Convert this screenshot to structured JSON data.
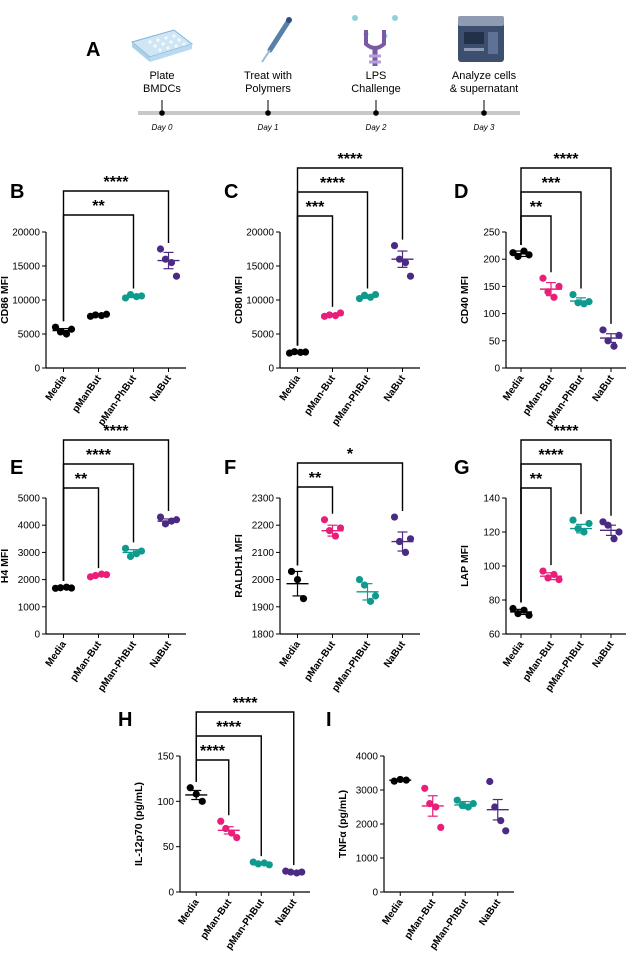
{
  "colors": {
    "Media": "#000000",
    "pMan-But": "#e91e7a",
    "pMan-PhBut": "#0f9a8e",
    "NaBut": "#4b2a83"
  },
  "timeline": {
    "panel_label": "A",
    "steps": [
      {
        "label_lines": [
          "Plate",
          "BMDCs"
        ],
        "day": "Day 0",
        "icon": "plate-icon"
      },
      {
        "label_lines": [
          "Treat with",
          "Polymers"
        ],
        "day": "Day 1",
        "icon": "pipette-icon"
      },
      {
        "label_lines": [
          "LPS",
          "Challenge"
        ],
        "day": "Day 2",
        "icon": "lps-molecule-icon"
      },
      {
        "label_lines": [
          "Analyze cells",
          "& supernatant"
        ],
        "day": "Day 3",
        "icon": "flow-cytometer-icon"
      }
    ]
  },
  "chart_data": [
    {
      "panel": "B",
      "type": "scatter",
      "ylabel": "CD86 MFI",
      "categories": [
        "Media",
        "pManBut",
        "pMan-PhBut",
        "NaBut"
      ],
      "ylim": [
        0,
        20000
      ],
      "yticks": [
        0,
        5000,
        10000,
        15000,
        20000
      ],
      "series": [
        {
          "name": "Media",
          "points": [
            6000,
            5300,
            5000,
            5700
          ],
          "mean": 5500,
          "sem": 300
        },
        {
          "name": "pManBut",
          "points": [
            7600,
            7800,
            7700,
            7900
          ],
          "mean": 7750,
          "sem": 150
        },
        {
          "name": "pMan-PhBut",
          "points": [
            10300,
            10800,
            10500,
            10600
          ],
          "mean": 10550,
          "sem": 200
        },
        {
          "name": "NaBut",
          "points": [
            17500,
            16000,
            15500,
            13500
          ],
          "mean": 15800,
          "sem": 1200
        }
      ],
      "brackets": [
        {
          "from": 0,
          "to": 2,
          "label": "**"
        },
        {
          "from": 0,
          "to": 3,
          "label": "****"
        }
      ]
    },
    {
      "panel": "C",
      "type": "scatter",
      "ylabel": "CD80 MFI",
      "categories": [
        "Media",
        "pMan-But",
        "pMan-PhBut",
        "NaBut"
      ],
      "ylim": [
        0,
        20000
      ],
      "yticks": [
        0,
        5000,
        10000,
        15000,
        20000
      ],
      "series": [
        {
          "name": "Media",
          "points": [
            2200,
            2400,
            2300,
            2350
          ],
          "mean": 2300,
          "sem": 100
        },
        {
          "name": "pMan-But",
          "points": [
            7600,
            7800,
            7700,
            8100
          ],
          "mean": 7800,
          "sem": 200
        },
        {
          "name": "pMan-PhBut",
          "points": [
            10200,
            10700,
            10400,
            10800
          ],
          "mean": 10500,
          "sem": 250
        },
        {
          "name": "NaBut",
          "points": [
            18000,
            16000,
            15500,
            13500
          ],
          "mean": 16000,
          "sem": 1200
        }
      ],
      "brackets": [
        {
          "from": 0,
          "to": 1,
          "label": "***"
        },
        {
          "from": 0,
          "to": 2,
          "label": "****"
        },
        {
          "from": 0,
          "to": 3,
          "label": "****"
        }
      ]
    },
    {
      "panel": "D",
      "type": "scatter",
      "ylabel": "CD40 MFI",
      "categories": [
        "Media",
        "pMan-But",
        "pMan-PhBut",
        "NaBut"
      ],
      "ylim": [
        0,
        250
      ],
      "yticks": [
        0,
        50,
        100,
        150,
        200,
        250
      ],
      "series": [
        {
          "name": "Media",
          "points": [
            212,
            205,
            215,
            208
          ],
          "mean": 210,
          "sem": 5
        },
        {
          "name": "pMan-But",
          "points": [
            165,
            140,
            130,
            150
          ],
          "mean": 145,
          "sem": 12
        },
        {
          "name": "pMan-PhBut",
          "points": [
            135,
            120,
            118,
            122
          ],
          "mean": 123,
          "sem": 6
        },
        {
          "name": "NaBut",
          "points": [
            70,
            50,
            40,
            60
          ],
          "mean": 55,
          "sem": 8
        }
      ],
      "brackets": [
        {
          "from": 0,
          "to": 1,
          "label": "**"
        },
        {
          "from": 0,
          "to": 2,
          "label": "***"
        },
        {
          "from": 0,
          "to": 3,
          "label": "****"
        }
      ]
    },
    {
      "panel": "E",
      "type": "scatter",
      "ylabel": "H4 MFI",
      "categories": [
        "Media",
        "pMan-But",
        "pMan-PhBut",
        "NaBut"
      ],
      "ylim": [
        0,
        5000
      ],
      "yticks": [
        0,
        1000,
        2000,
        3000,
        4000,
        5000
      ],
      "series": [
        {
          "name": "Media",
          "points": [
            1680,
            1700,
            1720,
            1690
          ],
          "mean": 1700,
          "sem": 30
        },
        {
          "name": "pMan-But",
          "points": [
            2100,
            2150,
            2200,
            2180
          ],
          "mean": 2160,
          "sem": 40
        },
        {
          "name": "pMan-PhBut",
          "points": [
            3150,
            2850,
            2950,
            3050
          ],
          "mean": 3000,
          "sem": 100
        },
        {
          "name": "NaBut",
          "points": [
            4300,
            4050,
            4150,
            4200
          ],
          "mean": 4150,
          "sem": 80
        }
      ],
      "brackets": [
        {
          "from": 0,
          "to": 1,
          "label": "**"
        },
        {
          "from": 0,
          "to": 2,
          "label": "****"
        },
        {
          "from": 0,
          "to": 3,
          "label": "****"
        }
      ]
    },
    {
      "panel": "F",
      "type": "scatter",
      "ylabel": "RALDH1 MFI",
      "categories": [
        "Media",
        "pMan-But",
        "pMan-PhBut",
        "NaBut"
      ],
      "ylim": [
        1800,
        2300
      ],
      "yticks": [
        1800,
        1900,
        2000,
        2100,
        2200,
        2300
      ],
      "series": [
        {
          "name": "Media",
          "points": [
            2030,
            2000,
            1930
          ],
          "mean": 1985,
          "sem": 45
        },
        {
          "name": "pMan-But",
          "points": [
            2220,
            2180,
            2160,
            2190
          ],
          "mean": 2180,
          "sem": 20
        },
        {
          "name": "pMan-PhBut",
          "points": [
            2000,
            1980,
            1920,
            1940
          ],
          "mean": 1955,
          "sem": 30
        },
        {
          "name": "NaBut",
          "points": [
            2230,
            2140,
            2100,
            2150
          ],
          "mean": 2140,
          "sem": 35
        }
      ],
      "brackets": [
        {
          "from": 0,
          "to": 1,
          "label": "**"
        },
        {
          "from": 0,
          "to": 3,
          "label": "*"
        }
      ]
    },
    {
      "panel": "G",
      "type": "scatter",
      "ylabel": "LAP MFI",
      "categories": [
        "Media",
        "pMan-But",
        "pMan-PhBut",
        "NaBut"
      ],
      "ylim": [
        60,
        140
      ],
      "yticks": [
        60,
        80,
        100,
        120,
        140
      ],
      "series": [
        {
          "name": "Media",
          "points": [
            75,
            72,
            74,
            71
          ],
          "mean": 73,
          "sem": 1.5
        },
        {
          "name": "pMan-But",
          "points": [
            97,
            93,
            95,
            92
          ],
          "mean": 94,
          "sem": 2
        },
        {
          "name": "pMan-PhBut",
          "points": [
            127,
            122,
            120,
            125
          ],
          "mean": 122,
          "sem": 2.5
        },
        {
          "name": "NaBut",
          "points": [
            126,
            124,
            116,
            120
          ],
          "mean": 121,
          "sem": 3
        }
      ],
      "brackets": [
        {
          "from": 0,
          "to": 1,
          "label": "**"
        },
        {
          "from": 0,
          "to": 2,
          "label": "****"
        },
        {
          "from": 0,
          "to": 3,
          "label": "****"
        }
      ]
    },
    {
      "panel": "H",
      "type": "scatter",
      "ylabel": "IL-12p70 (pg/mL)",
      "categories": [
        "Media",
        "pMan-But",
        "pMan-PhBut",
        "NaBut"
      ],
      "ylim": [
        0,
        150
      ],
      "yticks": [
        0,
        50,
        100,
        150
      ],
      "series": [
        {
          "name": "Media",
          "points": [
            115,
            108,
            100
          ],
          "mean": 107,
          "sem": 5
        },
        {
          "name": "pMan-But",
          "points": [
            78,
            70,
            65,
            60
          ],
          "mean": 68,
          "sem": 4
        },
        {
          "name": "pMan-PhBut",
          "points": [
            33,
            31,
            32,
            30
          ],
          "mean": 32,
          "sem": 1
        },
        {
          "name": "NaBut",
          "points": [
            23,
            22,
            21,
            22
          ],
          "mean": 22,
          "sem": 0.5
        }
      ],
      "brackets": [
        {
          "from": 0,
          "to": 1,
          "label": "****"
        },
        {
          "from": 0,
          "to": 2,
          "label": "****"
        },
        {
          "from": 0,
          "to": 3,
          "label": "****"
        }
      ]
    },
    {
      "panel": "I",
      "type": "scatter",
      "ylabel": "TNFα (pg/mL)",
      "categories": [
        "Media",
        "pMan-But",
        "pMan-PhBut",
        "NaBut"
      ],
      "ylim": [
        0,
        4000
      ],
      "yticks": [
        0,
        1000,
        2000,
        3000,
        4000
      ],
      "series": [
        {
          "name": "Media",
          "points": [
            3260,
            3310,
            3290
          ],
          "mean": 3290,
          "sem": 20
        },
        {
          "name": "pMan-But",
          "points": [
            3050,
            2600,
            2500,
            1900
          ],
          "mean": 2530,
          "sem": 300
        },
        {
          "name": "pMan-PhBut",
          "points": [
            2700,
            2550,
            2500,
            2600
          ],
          "mean": 2560,
          "sem": 100
        },
        {
          "name": "NaBut",
          "points": [
            3250,
            2500,
            2100,
            1800
          ],
          "mean": 2420,
          "sem": 300
        }
      ],
      "brackets": []
    }
  ]
}
